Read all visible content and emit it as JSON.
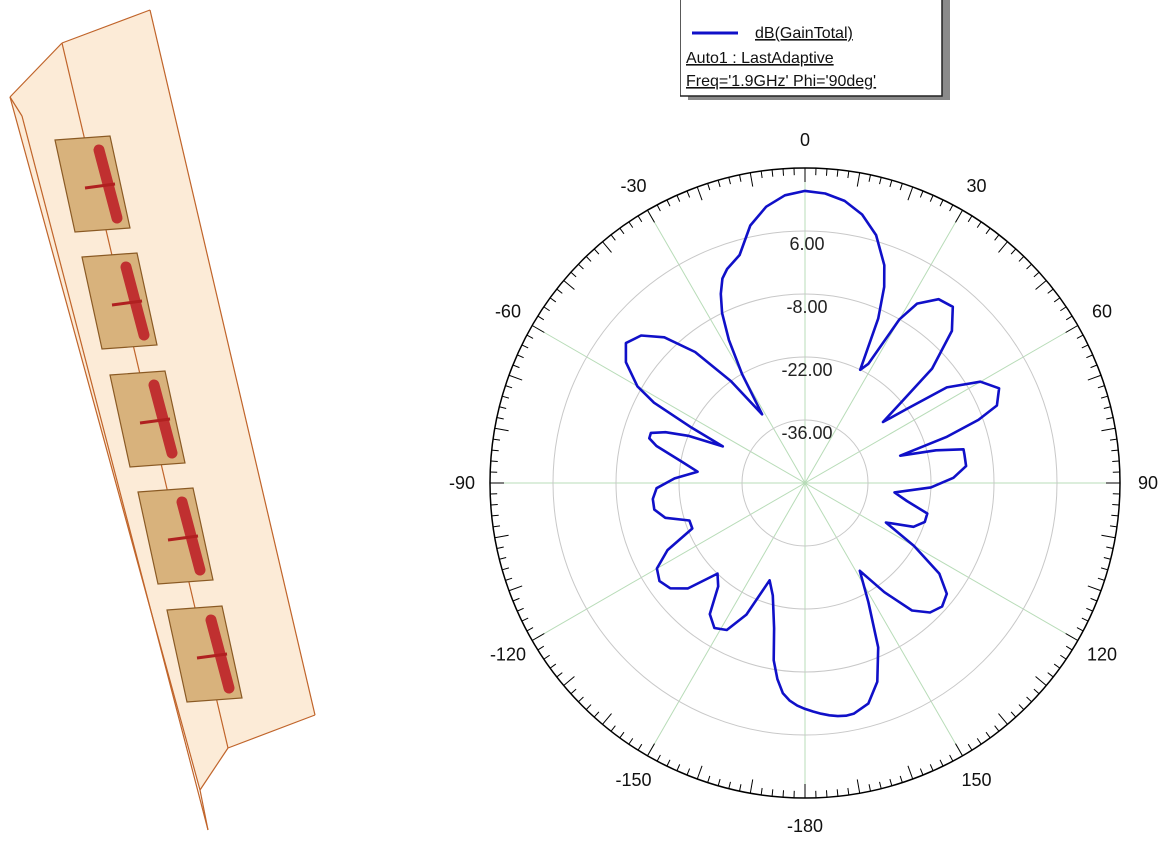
{
  "legend": {
    "series_label": "dB(GainTotal)",
    "setup": "Auto1 : LastAdaptive",
    "params": "Freq='1.9GHz' Phi='90deg'"
  },
  "colors": {
    "series": "#1010c8",
    "grid_ring": "#c8c8c8",
    "grid_spoke": "#b8dcb8",
    "panel_fill": "#fcebd7",
    "panel_edge": "#c0642a",
    "patch_fill": "#d8b27c",
    "patch_edge": "#8a5a24",
    "dipole": "#c03030"
  },
  "chart_data": {
    "type": "polar-line",
    "title": "",
    "angle_unit": "deg",
    "angle_ticks": [
      0,
      30,
      60,
      90,
      120,
      150,
      -180,
      -150,
      -120,
      -90,
      -60,
      -30
    ],
    "angle_tick_labels": [
      "0",
      "30",
      "60",
      "90",
      "120",
      "150",
      "-180",
      "-150",
      "-120",
      "-90",
      "-60",
      "-30"
    ],
    "r_range": [
      -50,
      20
    ],
    "r_ticks": [
      6,
      -8,
      -22,
      -36
    ],
    "r_tick_labels": [
      "6.00",
      "-8.00",
      "-22.00",
      "-36.00"
    ],
    "series": [
      {
        "name": "dB(GainTotal)",
        "theta": [
          0,
          4,
          8,
          12,
          16,
          20,
          22,
          24,
          26,
          28,
          30,
          32,
          36,
          40,
          44,
          48,
          50,
          52,
          54,
          56,
          60,
          64,
          68,
          70,
          72,
          74,
          76,
          78,
          80,
          84,
          88,
          92,
          96,
          100,
          104,
          108,
          112,
          116,
          120,
          124,
          128,
          132,
          136,
          140,
          144,
          148,
          152,
          156,
          160,
          164,
          168,
          170,
          172,
          174,
          176,
          178,
          180,
          182,
          184,
          186,
          188,
          190,
          192,
          196,
          200,
          204,
          208,
          212,
          216,
          220,
          224,
          228,
          232,
          236,
          240,
          244,
          248,
          252,
          256,
          260,
          264,
          268,
          272,
          276,
          280,
          284,
          286,
          288,
          290,
          292,
          294,
          296,
          298,
          300,
          304,
          308,
          312,
          316,
          320,
          324,
          328,
          330,
          332,
          334,
          336,
          338,
          340,
          344,
          348,
          352,
          356,
          360
        ],
        "r": [
          14.9,
          14.5,
          13.3,
          11,
          7.3,
          1.5,
          -3,
          -10,
          -22,
          -20,
          -8,
          -3,
          0.5,
          1.1,
          -3,
          -12,
          -22,
          -28,
          -22,
          -12,
          -5,
          -2,
          -4,
          -9,
          -17,
          -28,
          -20,
          -14,
          -14,
          -14,
          -17,
          -22,
          -30,
          -27,
          -22,
          -22,
          -24,
          -30,
          -22,
          -14,
          -10,
          -9,
          -10,
          -13,
          -20,
          -27,
          -20,
          -10,
          -3,
          1,
          2.4,
          2.5,
          2.3,
          1.9,
          1.4,
          0.8,
          0.2,
          -0.5,
          -1.5,
          -3,
          -6,
          -10,
          -17,
          -24,
          -27,
          -18,
          -13,
          -12,
          -14,
          -20,
          -22,
          -15,
          -12,
          -11,
          -12,
          -16,
          -23,
          -23,
          -18,
          -16,
          -16,
          -17,
          -21,
          -26,
          -22,
          -16,
          -14,
          -14,
          -17,
          -22,
          -30,
          -22,
          -12,
          -7,
          -2,
          0.5,
          -1,
          -5,
          -12,
          -22,
          -32,
          -22,
          -14,
          -8,
          -4,
          -1,
          0.6,
          2.7,
          8.5,
          12,
          14.1,
          14.9
        ]
      }
    ]
  }
}
